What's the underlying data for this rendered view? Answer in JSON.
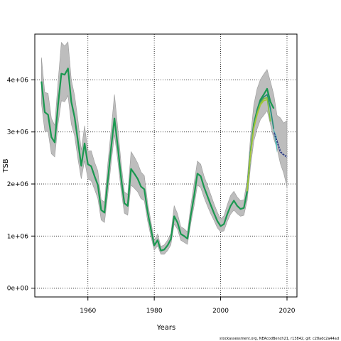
{
  "chart_data": {
    "type": "line",
    "title": "",
    "xlabel": "Years",
    "ylabel": "TSB",
    "xlim": [
      1944,
      2023
    ],
    "ylim": [
      -170000,
      4880000
    ],
    "x_ticks": [
      1960,
      1980,
      2000,
      2020
    ],
    "y_ticks": [
      0,
      1000000,
      2000000,
      3000000,
      4000000
    ],
    "y_tick_labels": [
      "0e+00",
      "1e+06",
      "2e+06",
      "3e+06",
      "4e+06"
    ],
    "grid": true,
    "footer": "stockassessment.org, NEAcodBench21, r13842, git: c28adc2a44ad",
    "colors": {
      "ci_band": "#bdbdbd",
      "ci_band_edge": "#9a9a9a",
      "retro_ci": "#5cc0b8",
      "main": "#1a9850",
      "peel1": "#2a8a78",
      "peel2": "#7fbf3f",
      "peel3": "#a6c637",
      "tail": "#1f2f7a"
    },
    "series": [
      {
        "key": "main",
        "x": [
          1946,
          1947,
          1948,
          1949,
          1950,
          1951,
          1952,
          1953,
          1954,
          1955,
          1956,
          1957,
          1958,
          1959,
          1960,
          1961,
          1962,
          1963,
          1964,
          1965,
          1966,
          1967,
          1968,
          1969,
          1970,
          1971,
          1972,
          1973,
          1974,
          1975,
          1976,
          1977,
          1978,
          1979,
          1980,
          1981,
          1982,
          1983,
          1984,
          1985,
          1986,
          1987,
          1988,
          1989,
          1990,
          1991,
          1992,
          1993,
          1994,
          1995,
          1996,
          1997,
          1998,
          1999,
          2000,
          2001,
          2002,
          2003,
          2004,
          2005,
          2006,
          2007,
          2008,
          2009,
          2010,
          2011,
          2012,
          2013,
          2014,
          2015,
          2016
        ],
        "y": [
          3970000,
          3380000,
          3330000,
          2900000,
          2800000,
          3520000,
          4120000,
          4100000,
          4220000,
          3580000,
          3280000,
          2820000,
          2350000,
          2780000,
          2380000,
          2340000,
          2150000,
          1980000,
          1500000,
          1450000,
          2070000,
          2700000,
          3260000,
          2720000,
          2120000,
          1630000,
          1580000,
          2290000,
          2200000,
          2100000,
          1950000,
          1900000,
          1460000,
          1130000,
          820000,
          920000,
          720000,
          740000,
          820000,
          940000,
          1380000,
          1260000,
          1040000,
          1000000,
          950000,
          1390000,
          1770000,
          2200000,
          2150000,
          1940000,
          1770000,
          1600000,
          1440000,
          1290000,
          1190000,
          1230000,
          1420000,
          1580000,
          1680000,
          1580000,
          1520000,
          1540000,
          1860000,
          2600000,
          3150000,
          3420000,
          3620000,
          3720000,
          3830000,
          3580000,
          3450000
        ]
      },
      {
        "key": "peel1",
        "x": [
          2008,
          2009,
          2010,
          2011,
          2012,
          2013,
          2014,
          2015,
          2016
        ],
        "y": [
          1860000,
          2600000,
          3120000,
          3390000,
          3580000,
          3670000,
          3720000,
          3460000,
          3060000
        ]
      },
      {
        "key": "peel2",
        "x": [
          2008,
          2009,
          2010,
          2011,
          2012,
          2013,
          2014,
          2015
        ],
        "y": [
          1860000,
          2580000,
          3100000,
          3360000,
          3550000,
          3640000,
          3660000,
          3200000
        ]
      },
      {
        "key": "peel3",
        "x": [
          2008,
          2009,
          2010,
          2011,
          2012,
          2013,
          2014
        ],
        "y": [
          1860000,
          2560000,
          3070000,
          3330000,
          3520000,
          3600000,
          3620000
        ]
      },
      {
        "key": "tail",
        "x": [
          2016,
          2017,
          2018,
          2019,
          2020
        ],
        "y": [
          3000000,
          2820000,
          2620000,
          2560000,
          2520000
        ]
      }
    ],
    "ci": {
      "x": [
        1946,
        1947,
        1948,
        1949,
        1950,
        1951,
        1952,
        1953,
        1954,
        1955,
        1956,
        1957,
        1958,
        1959,
        1960,
        1961,
        1962,
        1963,
        1964,
        1965,
        1966,
        1967,
        1968,
        1969,
        1970,
        1971,
        1972,
        1973,
        1974,
        1975,
        1976,
        1977,
        1978,
        1979,
        1980,
        1981,
        1982,
        1983,
        1984,
        1985,
        1986,
        1987,
        1988,
        1989,
        1990,
        1991,
        1992,
        1993,
        1994,
        1995,
        1996,
        1997,
        1998,
        1999,
        2000,
        2001,
        2002,
        2003,
        2004,
        2005,
        2006,
        2007,
        2008,
        2009,
        2010,
        2011,
        2012,
        2013,
        2014,
        2015,
        2016,
        2017,
        2018,
        2019,
        2020
      ],
      "lower": [
        3550000,
        3020000,
        3000000,
        2580000,
        2520000,
        3150000,
        3600000,
        3580000,
        3700000,
        3150000,
        2920000,
        2480000,
        2100000,
        2450000,
        2100000,
        2060000,
        1900000,
        1720000,
        1310000,
        1260000,
        1800000,
        2400000,
        2950000,
        2450000,
        1880000,
        1440000,
        1400000,
        1980000,
        1920000,
        1850000,
        1720000,
        1680000,
        1290000,
        990000,
        730000,
        810000,
        650000,
        650000,
        720000,
        830000,
        1230000,
        1130000,
        920000,
        880000,
        840000,
        1240000,
        1580000,
        1980000,
        1930000,
        1740000,
        1580000,
        1430000,
        1300000,
        1160000,
        1080000,
        1100000,
        1280000,
        1420000,
        1500000,
        1430000,
        1380000,
        1400000,
        1680000,
        2330000,
        2820000,
        3060000,
        3240000,
        3320000,
        3410000,
        3150000,
        2870000,
        2680000,
        2390000,
        2210000,
        1940000
      ],
      "upper": [
        4430000,
        3760000,
        3740000,
        3260000,
        3130000,
        3960000,
        4720000,
        4650000,
        4730000,
        4000000,
        3700000,
        3230000,
        2650000,
        3120000,
        2640000,
        2640000,
        2420000,
        2250000,
        1700000,
        1650000,
        2390000,
        3040000,
        3720000,
        3080000,
        2410000,
        1850000,
        1800000,
        2620000,
        2520000,
        2400000,
        2230000,
        2160000,
        1640000,
        1280000,
        920000,
        1040000,
        800000,
        830000,
        920000,
        1050000,
        1580000,
        1430000,
        1180000,
        1140000,
        1080000,
        1580000,
        2010000,
        2440000,
        2380000,
        2150000,
        1980000,
        1800000,
        1620000,
        1460000,
        1330000,
        1390000,
        1600000,
        1780000,
        1860000,
        1750000,
        1680000,
        1700000,
        2080000,
        2900000,
        3520000,
        3830000,
        4010000,
        4110000,
        4200000,
        3970000,
        3720000,
        3320000,
        3270000,
        3170000,
        3220000
      ]
    },
    "retro_ci": {
      "x": [
        2014,
        2015,
        2016,
        2017
      ],
      "lower": [
        3700000,
        3360000,
        2980000,
        2600000
      ],
      "upper": [
        3790000,
        3500000,
        3060000,
        2900000
      ]
    }
  }
}
